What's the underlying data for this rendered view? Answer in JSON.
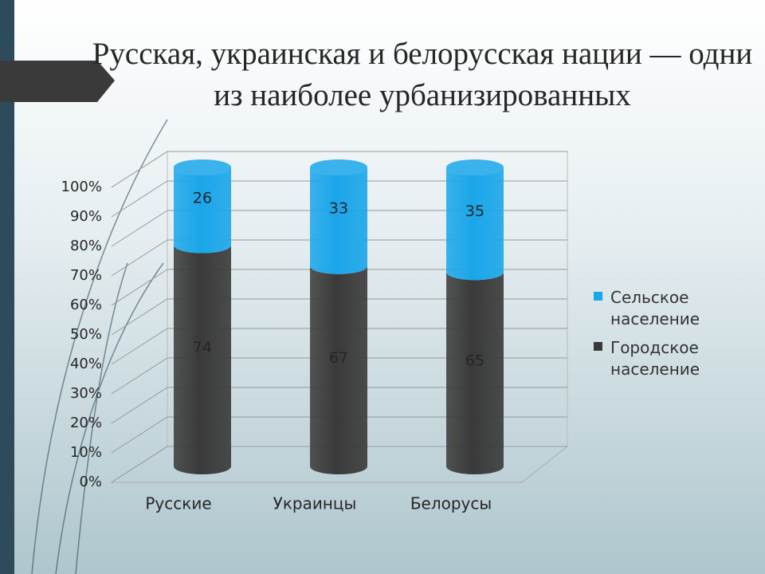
{
  "chart_data": {
    "type": "bar3d_stacked",
    "title": "Русская, украинская и белорусская нации — одни из наиболее урбанизированных",
    "categories": [
      "Русские",
      "Украинцы",
      "Белорусы"
    ],
    "series": [
      {
        "name": "Городское население",
        "color": "#3a3a3a",
        "values": [
          74,
          67,
          65
        ]
      },
      {
        "name": "Сельское население",
        "color": "#1aa6ea",
        "values": [
          26,
          33,
          35
        ]
      }
    ],
    "ylim": [
      0,
      100
    ],
    "yticks": [
      {
        "value": 0,
        "label": "0%"
      },
      {
        "value": 10,
        "label": "10%"
      },
      {
        "value": 20,
        "label": "20%"
      },
      {
        "value": 30,
        "label": "30%"
      },
      {
        "value": 40,
        "label": "40%"
      },
      {
        "value": 50,
        "label": "50%"
      },
      {
        "value": 60,
        "label": "60%"
      },
      {
        "value": 70,
        "label": "70%"
      },
      {
        "value": 80,
        "label": "80%"
      },
      {
        "value": 90,
        "label": "90%"
      },
      {
        "value": 100,
        "label": "100%"
      }
    ],
    "grid": true,
    "legend": "right"
  }
}
